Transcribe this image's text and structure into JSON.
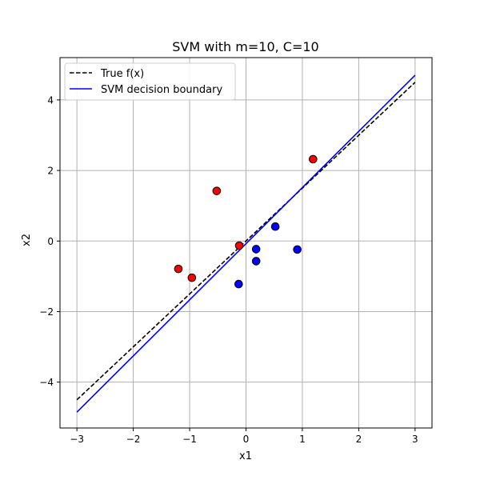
{
  "chart_data": {
    "type": "line",
    "title": "SVM with m=10, C=10",
    "xlabel": "x1",
    "ylabel": "x2",
    "xlim": [
      -3.3,
      3.3
    ],
    "ylim": [
      -5.3,
      5.2
    ],
    "xticks": [
      -3,
      -2,
      -1,
      0,
      1,
      2,
      3
    ],
    "xtick_labels": [
      "−3",
      "−2",
      "−1",
      "0",
      "1",
      "2",
      "3"
    ],
    "yticks": [
      -4,
      -2,
      0,
      2,
      4
    ],
    "ytick_labels": [
      "−4",
      "−2",
      "0",
      "2",
      "4"
    ],
    "grid": true,
    "legend_position": "upper-left",
    "series": [
      {
        "name": "True f(x)",
        "kind": "line",
        "style": "dashed",
        "color": "#000000",
        "x": [
          -3,
          3
        ],
        "y": [
          -4.5,
          4.5
        ]
      },
      {
        "name": "SVM decision boundary",
        "kind": "line",
        "style": "solid",
        "color": "#0000ff",
        "x": [
          -3,
          3
        ],
        "y": [
          -4.85,
          4.7
        ]
      },
      {
        "kind": "scatter",
        "color": "#ff0000",
        "x": [
          1.19,
          -0.52,
          -1.2,
          -0.96,
          -0.12
        ],
        "y": [
          2.32,
          1.42,
          -0.79,
          -1.04,
          -0.13
        ]
      },
      {
        "kind": "scatter",
        "color": "#0000ff",
        "x": [
          0.52,
          0.18,
          0.91,
          0.18,
          -0.13
        ],
        "y": [
          0.41,
          -0.23,
          -0.24,
          -0.57,
          -1.22
        ]
      }
    ]
  }
}
